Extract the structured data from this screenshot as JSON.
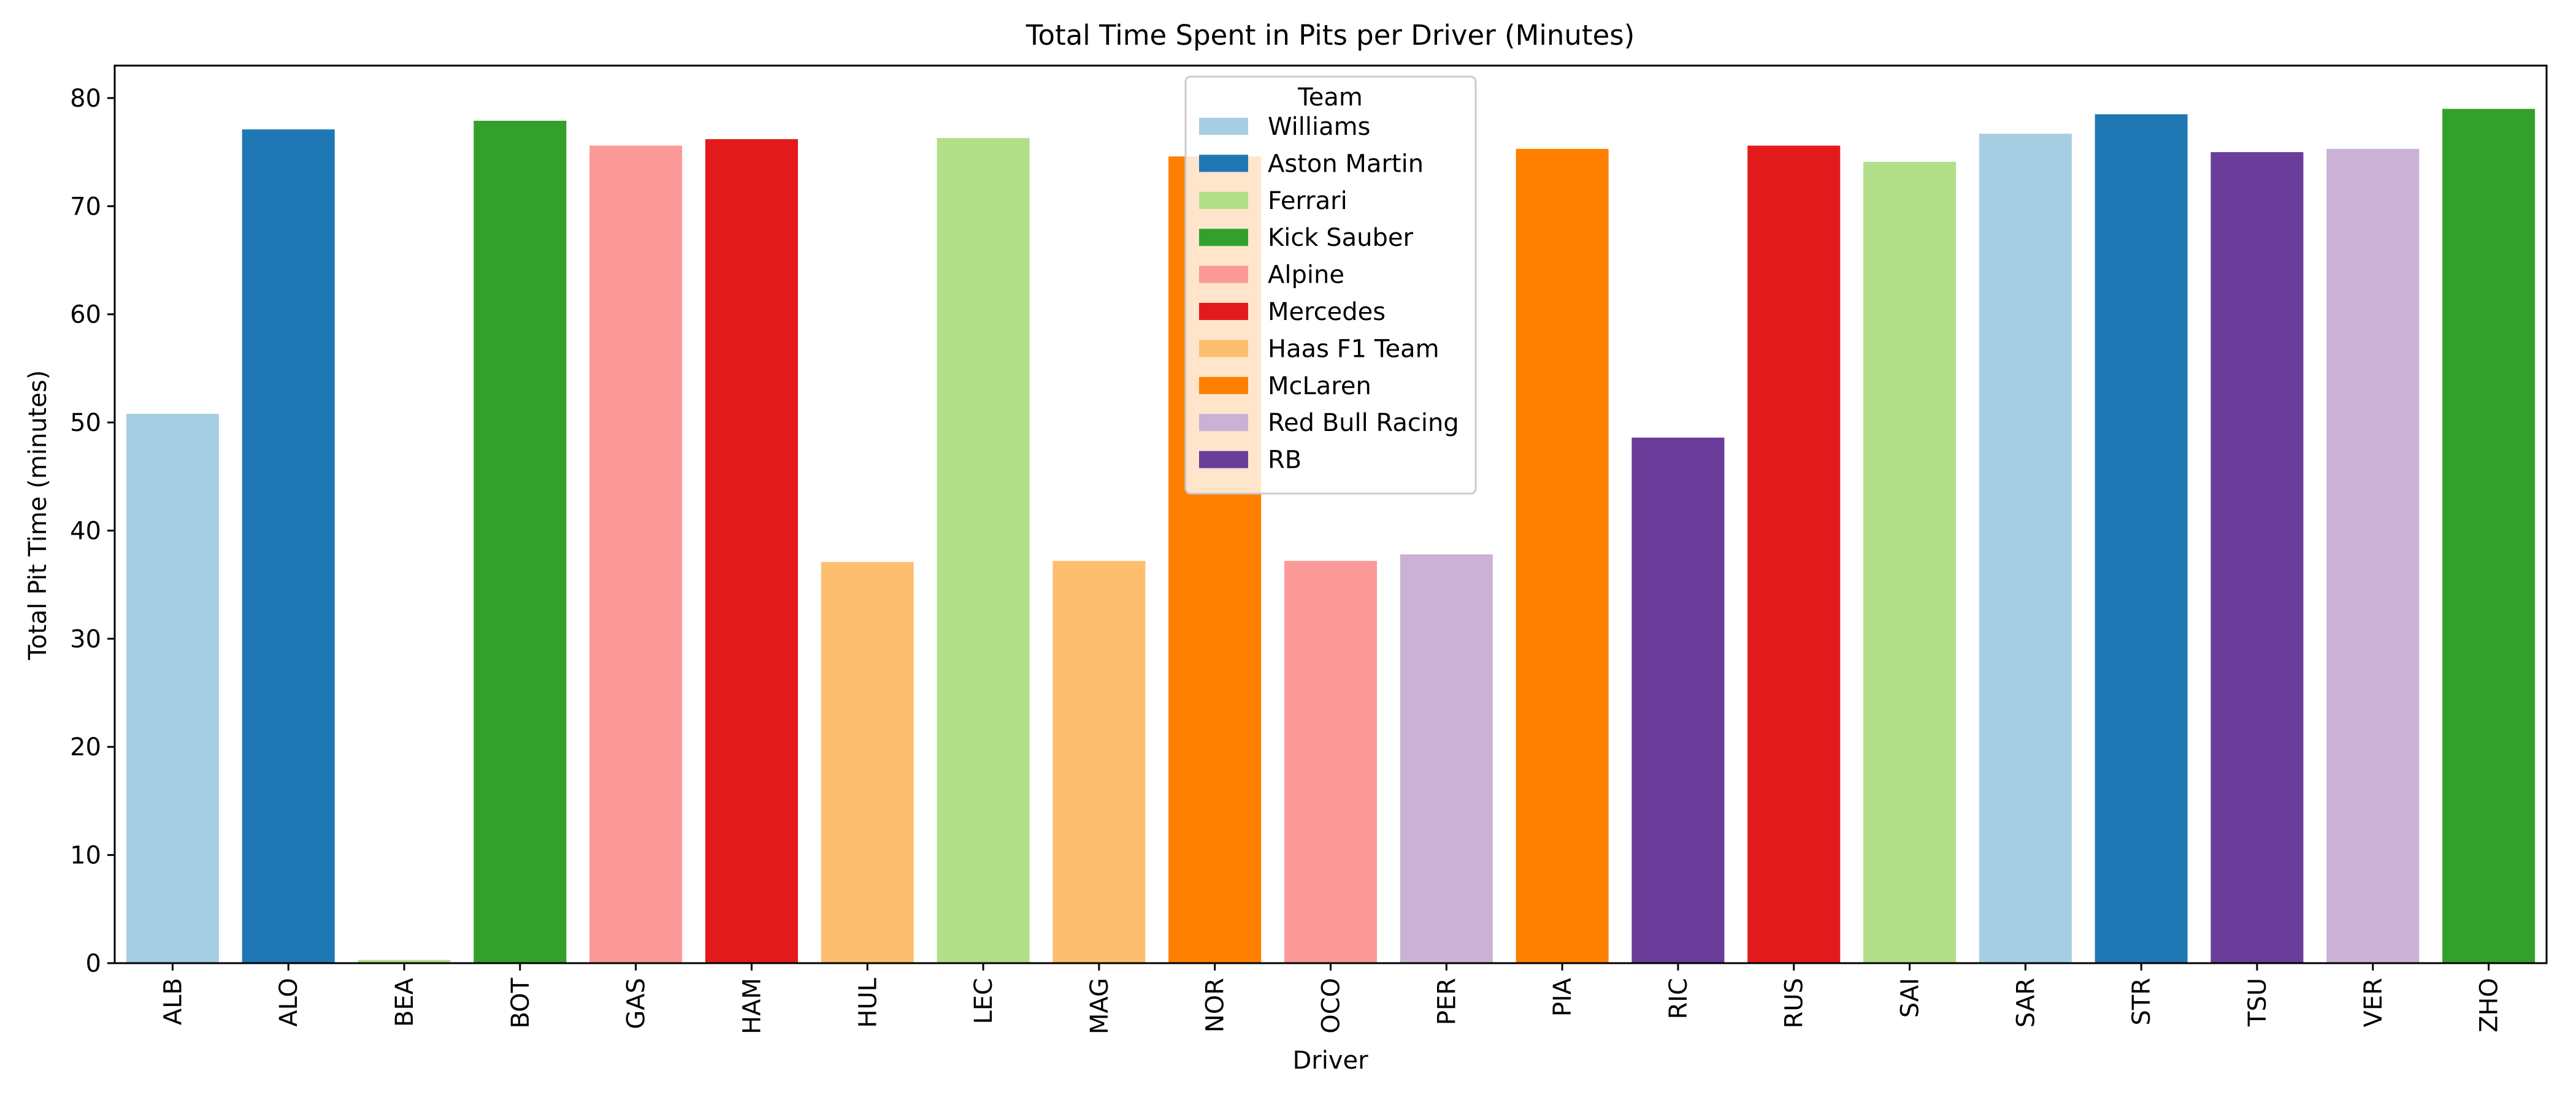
{
  "chart_data": {
    "type": "bar",
    "title": "Total Time Spent in Pits per Driver (Minutes)",
    "xlabel": "Driver",
    "ylabel": "Total Pit Time (minutes)",
    "ylim": [
      0,
      83
    ],
    "yticks": [
      0,
      10,
      20,
      30,
      40,
      50,
      60,
      70,
      80
    ],
    "grid": false,
    "legend_position": "top-center",
    "legend_title": "Team",
    "teams": [
      {
        "name": "Williams",
        "color": "#a6cee3"
      },
      {
        "name": "Aston Martin",
        "color": "#1f78b4"
      },
      {
        "name": "Ferrari",
        "color": "#b2df8a"
      },
      {
        "name": "Kick Sauber",
        "color": "#33a02c"
      },
      {
        "name": "Alpine",
        "color": "#fb9a99"
      },
      {
        "name": "Mercedes",
        "color": "#e31a1c"
      },
      {
        "name": "Haas F1 Team",
        "color": "#fdbf6f"
      },
      {
        "name": "McLaren",
        "color": "#ff7f00"
      },
      {
        "name": "Red Bull Racing",
        "color": "#cab2d6"
      },
      {
        "name": "RB",
        "color": "#6a3d9a"
      }
    ],
    "categories": [
      "ALB",
      "ALO",
      "BEA",
      "BOT",
      "GAS",
      "HAM",
      "HUL",
      "LEC",
      "MAG",
      "NOR",
      "OCO",
      "PER",
      "PIA",
      "RIC",
      "RUS",
      "SAI",
      "SAR",
      "STR",
      "TSU",
      "VER",
      "ZHO"
    ],
    "values": [
      50.8,
      77.1,
      0.3,
      77.9,
      75.6,
      76.2,
      37.1,
      76.3,
      37.2,
      74.6,
      37.2,
      37.8,
      75.3,
      48.6,
      75.6,
      74.1,
      76.7,
      78.5,
      75.0,
      75.3,
      79.0
    ],
    "bar_teams": [
      "Williams",
      "Aston Martin",
      "Ferrari",
      "Kick Sauber",
      "Alpine",
      "Mercedes",
      "Haas F1 Team",
      "Ferrari",
      "Haas F1 Team",
      "McLaren",
      "Alpine",
      "Red Bull Racing",
      "McLaren",
      "RB",
      "Mercedes",
      "Ferrari",
      "Williams",
      "Aston Martin",
      "RB",
      "Red Bull Racing",
      "Kick Sauber"
    ]
  }
}
